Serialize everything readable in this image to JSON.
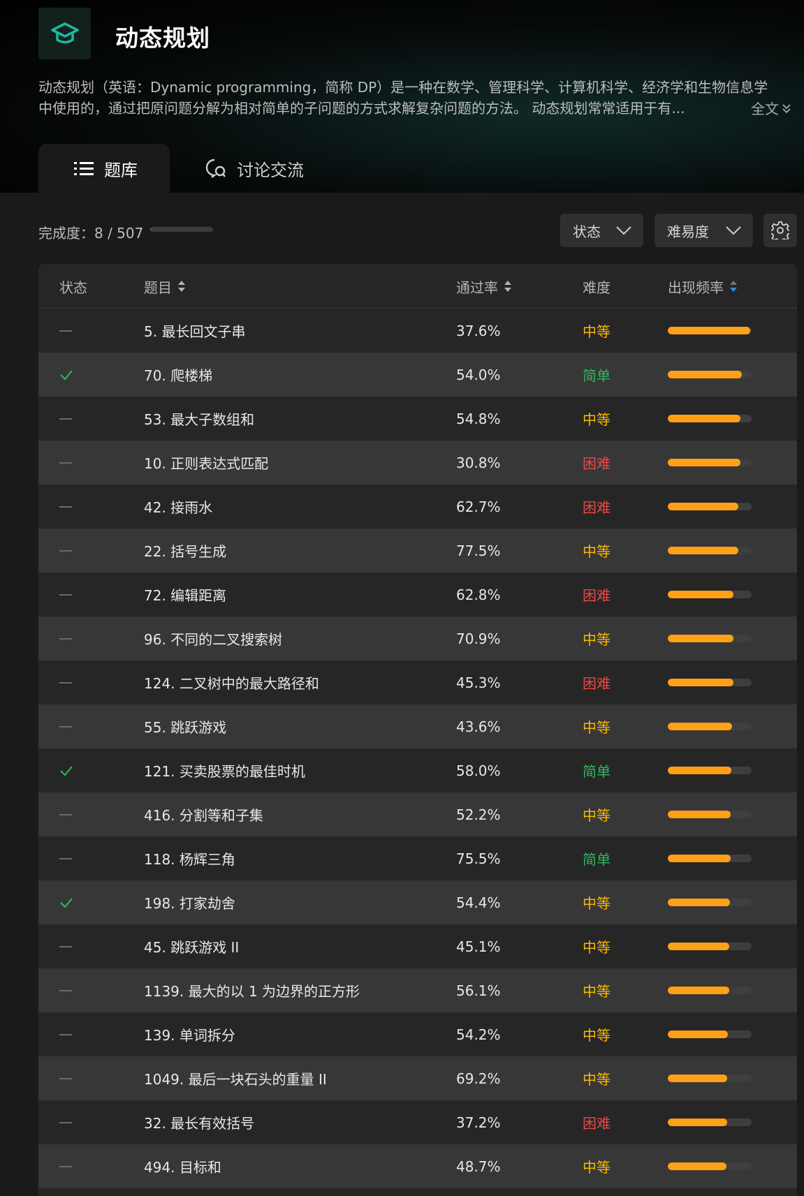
{
  "header": {
    "title": "动态规划",
    "description_line1": "动态规划（英语：Dynamic programming，简称 DP）是一种在数学、管理科学、计算机科学、经济学和生物信息学",
    "description_line2": "中使用的，通过把原问题分解为相对简单的子问题的方式求解复杂问题的方法。 动态规划常常适用于有...",
    "full_text_label": "全文"
  },
  "tabs": [
    {
      "label": "题库",
      "active": true,
      "icon": "list-icon"
    },
    {
      "label": "讨论交流",
      "active": false,
      "icon": "chat-icon"
    }
  ],
  "progress": {
    "label": "完成度：8 / 507",
    "completed": 8,
    "total": 507
  },
  "filters": {
    "status_label": "状态",
    "difficulty_label": "难易度"
  },
  "colors": {
    "easy": "#2cbb5d",
    "medium": "#ffb800",
    "hard": "#ef4743",
    "accent": "#ffa116",
    "progress": "#2f8cff"
  },
  "table": {
    "headers": {
      "status": "状态",
      "title": "题目",
      "rate": "通过率",
      "difficulty": "难度",
      "frequency": "出现频率"
    },
    "rows": [
      {
        "solved": false,
        "title": "5. 最长回文子串",
        "rate": "37.6%",
        "difficulty": "中等",
        "level": "medium",
        "frequency": 0.98
      },
      {
        "solved": true,
        "title": "70. 爬楼梯",
        "rate": "54.0%",
        "difficulty": "简单",
        "level": "easy",
        "frequency": 0.88
      },
      {
        "solved": false,
        "title": "53. 最大子数组和",
        "rate": "54.8%",
        "difficulty": "中等",
        "level": "medium",
        "frequency": 0.87
      },
      {
        "solved": false,
        "title": "10. 正则表达式匹配",
        "rate": "30.8%",
        "difficulty": "困难",
        "level": "hard",
        "frequency": 0.87
      },
      {
        "solved": false,
        "title": "42. 接雨水",
        "rate": "62.7%",
        "difficulty": "困难",
        "level": "hard",
        "frequency": 0.84
      },
      {
        "solved": false,
        "title": "22. 括号生成",
        "rate": "77.5%",
        "difficulty": "中等",
        "level": "medium",
        "frequency": 0.84
      },
      {
        "solved": false,
        "title": "72. 编辑距离",
        "rate": "62.8%",
        "difficulty": "困难",
        "level": "hard",
        "frequency": 0.78
      },
      {
        "solved": false,
        "title": "96. 不同的二叉搜索树",
        "rate": "70.9%",
        "difficulty": "中等",
        "level": "medium",
        "frequency": 0.78
      },
      {
        "solved": false,
        "title": "124. 二叉树中的最大路径和",
        "rate": "45.3%",
        "difficulty": "困难",
        "level": "hard",
        "frequency": 0.78
      },
      {
        "solved": false,
        "title": "55. 跳跃游戏",
        "rate": "43.6%",
        "difficulty": "中等",
        "level": "medium",
        "frequency": 0.77
      },
      {
        "solved": true,
        "title": "121. 买卖股票的最佳时机",
        "rate": "58.0%",
        "difficulty": "简单",
        "level": "easy",
        "frequency": 0.76
      },
      {
        "solved": false,
        "title": "416. 分割等和子集",
        "rate": "52.2%",
        "difficulty": "中等",
        "level": "medium",
        "frequency": 0.75
      },
      {
        "solved": false,
        "title": "118. 杨辉三角",
        "rate": "75.5%",
        "difficulty": "简单",
        "level": "easy",
        "frequency": 0.75
      },
      {
        "solved": true,
        "title": "198. 打家劫舍",
        "rate": "54.4%",
        "difficulty": "中等",
        "level": "medium",
        "frequency": 0.74
      },
      {
        "solved": false,
        "title": "45. 跳跃游戏 II",
        "rate": "45.1%",
        "difficulty": "中等",
        "level": "medium",
        "frequency": 0.73
      },
      {
        "solved": false,
        "title": "1139. 最大的以 1 为边界的正方形",
        "rate": "56.1%",
        "difficulty": "中等",
        "level": "medium",
        "frequency": 0.73
      },
      {
        "solved": false,
        "title": "139. 单词拆分",
        "rate": "54.2%",
        "difficulty": "中等",
        "level": "medium",
        "frequency": 0.72
      },
      {
        "solved": false,
        "title": "1049. 最后一块石头的重量 II",
        "rate": "69.2%",
        "difficulty": "中等",
        "level": "medium",
        "frequency": 0.71
      },
      {
        "solved": false,
        "title": "32. 最长有效括号",
        "rate": "37.2%",
        "difficulty": "困难",
        "level": "hard",
        "frequency": 0.71
      },
      {
        "solved": false,
        "title": "494. 目标和",
        "rate": "48.7%",
        "difficulty": "中等",
        "level": "medium",
        "frequency": 0.7
      }
    ]
  }
}
